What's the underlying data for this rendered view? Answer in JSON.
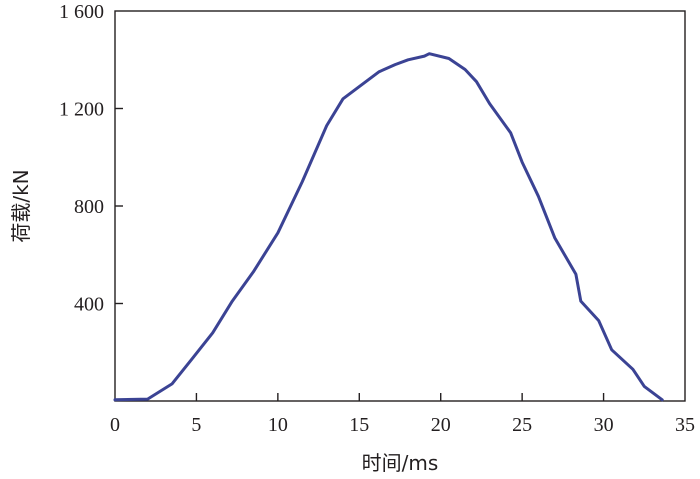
{
  "chart_data": {
    "type": "line",
    "title": "",
    "xlabel": "时间/ms",
    "ylabel": "荷载/kN",
    "xlim": [
      0,
      35
    ],
    "ylim": [
      0,
      1600
    ],
    "xticks": [
      0,
      5,
      10,
      15,
      20,
      25,
      30,
      35
    ],
    "xtick_labels": [
      "0",
      "5",
      "10",
      "15",
      "20",
      "25",
      "30",
      "35"
    ],
    "yticks": [
      400,
      800,
      1200,
      1600
    ],
    "ytick_labels": [
      "400",
      "800",
      "1 200",
      "1 600"
    ],
    "grid": false,
    "legend": "none",
    "series": [
      {
        "color": "#3b4394",
        "x": [
          0,
          2,
          3.5,
          4.7,
          6,
          7.2,
          8.5,
          10,
          11.5,
          13,
          14,
          15,
          16.2,
          17.2,
          18,
          19,
          19.3,
          20.5,
          21.5,
          22.2,
          23,
          24.3,
          25,
          26,
          27,
          28.3,
          28.6,
          29.7,
          30.5,
          31.8,
          32.5,
          33.6
        ],
        "y": [
          5,
          8,
          70,
          170,
          280,
          410,
          530,
          690,
          900,
          1130,
          1240,
          1290,
          1350,
          1380,
          1400,
          1415,
          1425,
          1405,
          1360,
          1310,
          1220,
          1100,
          980,
          840,
          670,
          520,
          410,
          330,
          210,
          130,
          60,
          5
        ]
      }
    ]
  }
}
